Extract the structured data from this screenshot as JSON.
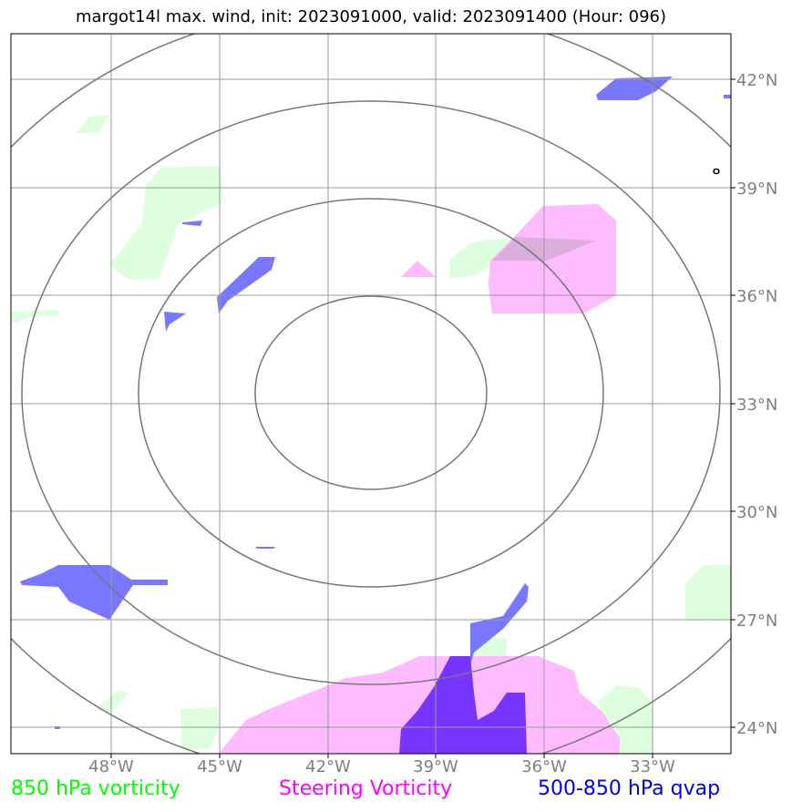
{
  "title": "margot14l max. wind, init: 2023091000, valid: 2023091400 (Hour: 096)",
  "map": {
    "lon_ticks": [
      "48°W",
      "45°W",
      "42°W",
      "39°W",
      "36°W",
      "33°W"
    ],
    "lat_ticks": [
      "42°N",
      "39°N",
      "36°N",
      "33°N",
      "30°N",
      "27°N",
      "24°N"
    ],
    "grid": true,
    "range_rings": 4
  },
  "legend": [
    {
      "label": "850 hPa vorticity",
      "color": "#00ff00"
    },
    {
      "label": "Steering Vorticity",
      "color": "#ff00ff"
    },
    {
      "label": "500-850 hPa qvap",
      "color": "#0000ee"
    }
  ],
  "colors": {
    "vorticity850_fill": "#ddffdd",
    "steering_fill": "#ffbbff",
    "qvap_fill": "#7777ff",
    "qvap_dark_fill": "#7733ff",
    "grid": "#999999",
    "ring": "#777777"
  }
}
